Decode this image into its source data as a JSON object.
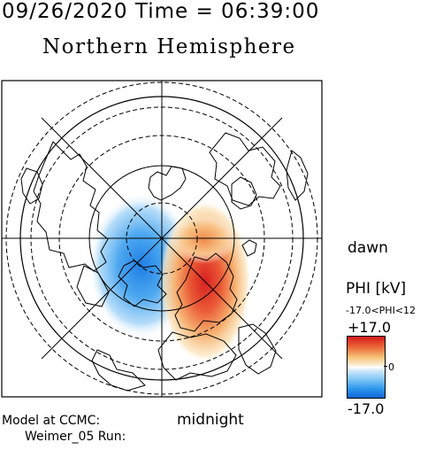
{
  "header": {
    "datetime": "09/26/2020 Time = 06:39:00",
    "hemisphere": "Northern Hemisphere"
  },
  "labels": {
    "dawn": "dawn",
    "midnight": "midnight",
    "model_line1": "Model at CCMC:",
    "model_line2": "Weimer_05 Run:"
  },
  "colorbar": {
    "title": "PHI [kV]",
    "range_text": "-17.0<PHI<12",
    "max_label": "+17.0",
    "zero_label": "0",
    "min_label": "-17.0",
    "positive_color": "#d41a1a",
    "negative_color": "#1065d6"
  },
  "map": {
    "grid_lines": "solid",
    "latitude_circles": "dashed",
    "potential_cells": [
      "negative (dusk side)",
      "positive (dawn side)"
    ]
  }
}
